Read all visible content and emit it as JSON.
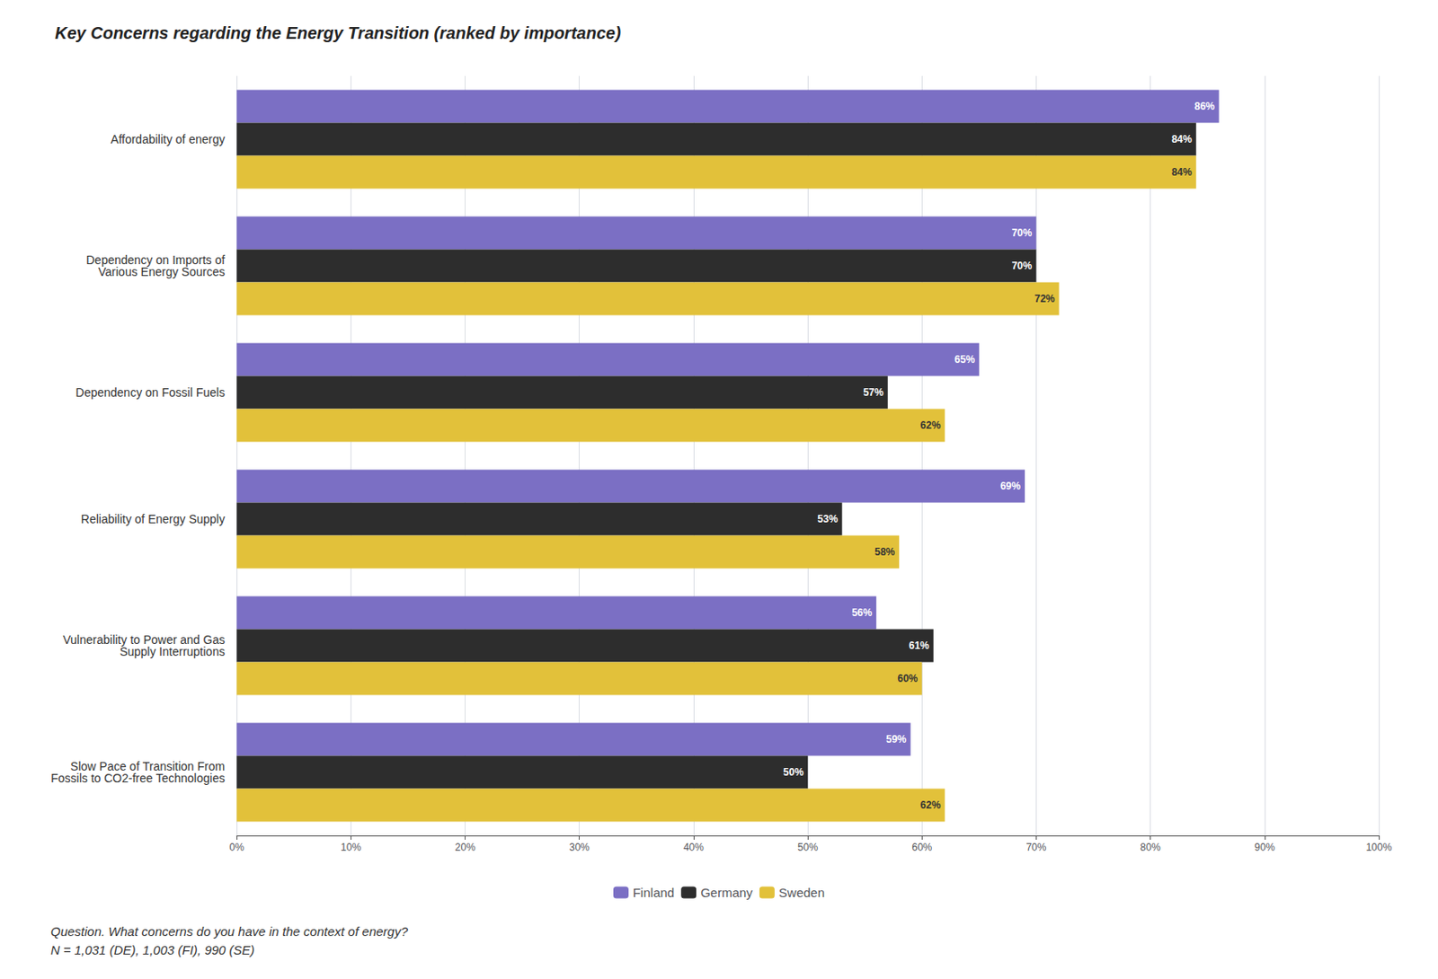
{
  "chart_data": {
    "type": "bar",
    "orientation": "horizontal",
    "title": "Key Concerns regarding the Energy Transition (ranked by importance)",
    "categories": [
      "Affordability of energy",
      "Dependency on Imports of\nVarious Energy Sources",
      "Dependency on Fossil Fuels",
      "Reliability of Energy Supply",
      "Vulnerability to Power and Gas\nSupply Interruptions",
      "Slow Pace of Transition From\nFossils to CO2-free Technologies"
    ],
    "series": [
      {
        "name": "Finland",
        "color": "#7B6FC4",
        "values": [
          86,
          70,
          65,
          69,
          56,
          59
        ],
        "value_labels": [
          "86%",
          "70%",
          "65%",
          "69%",
          "56%",
          "59%"
        ]
      },
      {
        "name": "Germany",
        "color": "#2D2D2D",
        "values": [
          84,
          70,
          57,
          53,
          61,
          50
        ],
        "value_labels": [
          "84%",
          "70%",
          "57%",
          "53%",
          "61%",
          "50%"
        ]
      },
      {
        "name": "Sweden",
        "color": "#E2C13A",
        "values": [
          84,
          72,
          62,
          58,
          60,
          62
        ],
        "value_labels": [
          "84%",
          "72%",
          "62%",
          "58%",
          "60%",
          "62%"
        ]
      }
    ],
    "xlim": [
      0,
      100
    ],
    "xticks": [
      {
        "value": 0,
        "label": "0%"
      },
      {
        "value": 10,
        "label": "10%"
      },
      {
        "value": 20,
        "label": "20%"
      },
      {
        "value": 30,
        "label": "30%"
      },
      {
        "value": 40,
        "label": "40%"
      },
      {
        "value": 50,
        "label": "50%"
      },
      {
        "value": 60,
        "label": "60%"
      },
      {
        "value": 70,
        "label": "70%"
      },
      {
        "value": 80,
        "label": "80%"
      },
      {
        "value": 90,
        "label": "90%"
      },
      {
        "value": 100,
        "label": "100%"
      }
    ],
    "data_labels": true,
    "grid": true,
    "legend": "bottom",
    "annotations": [
      "Question. What concerns do you have in the context of energy?",
      "N = 1,031 (DE), 1,003 (FI), 990 (SE)"
    ]
  }
}
